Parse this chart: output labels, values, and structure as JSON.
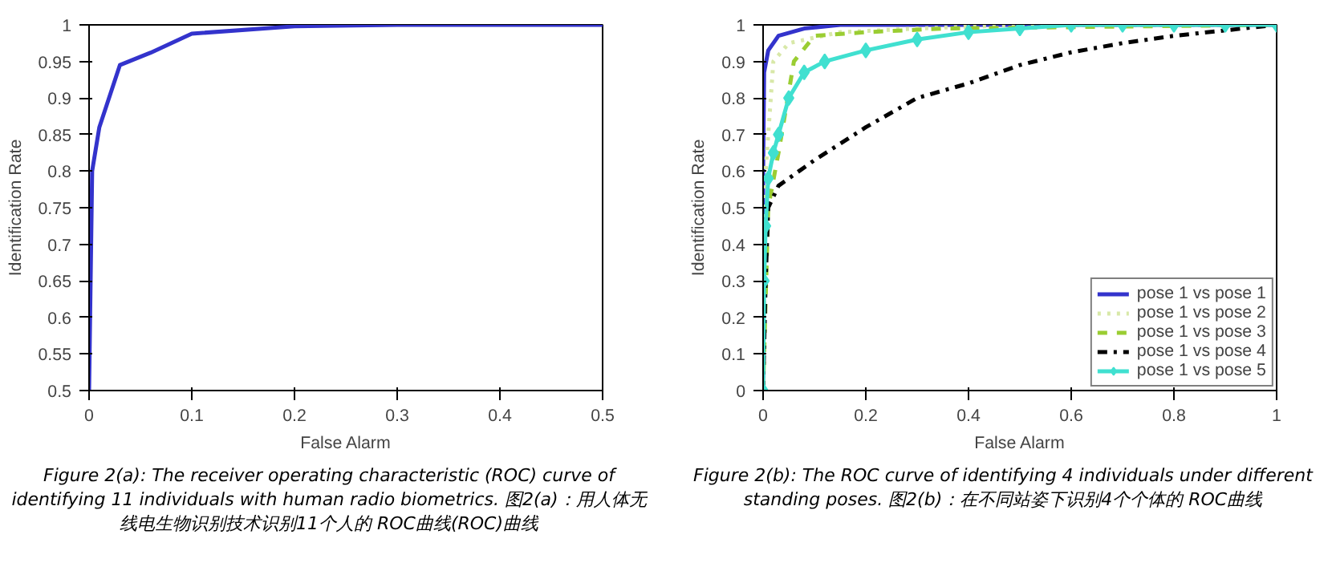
{
  "chart_data": [
    {
      "type": "line",
      "xlabel": "False Alarm",
      "ylabel": "Identification Rate",
      "xlim": [
        0,
        0.5
      ],
      "ylim": [
        0.5,
        1
      ],
      "xticks": [
        0,
        0.1,
        0.2,
        0.3,
        0.4,
        0.5
      ],
      "yticks": [
        0.5,
        0.55,
        0.6,
        0.65,
        0.7,
        0.75,
        0.8,
        0.85,
        0.9,
        0.95,
        1
      ],
      "grid": false,
      "legend": false,
      "annotations": [
        "Figure 2(a): The receiver operating characteristic (ROC) curve of identifying 11 individuals with human radio biometrics. 图2(a)：用人体无线电生物识别技术识别11个人的 ROC曲线(ROC)曲线"
      ],
      "series": [
        {
          "color": "#3333cc",
          "line_style": "solid",
          "x": [
            0,
            0.003,
            0.01,
            0.03,
            0.06,
            0.1,
            0.2,
            0.3,
            0.5
          ],
          "values": [
            0.5,
            0.8,
            0.86,
            0.945,
            0.962,
            0.988,
            0.998,
            1,
            1
          ]
        }
      ]
    },
    {
      "type": "line",
      "xlabel": "False Alarm",
      "ylabel": "Identification Rate",
      "xlim": [
        0,
        1
      ],
      "ylim": [
        0,
        1
      ],
      "xticks": [
        0,
        0.2,
        0.4,
        0.6,
        0.8,
        1
      ],
      "yticks": [
        0,
        0.1,
        0.2,
        0.3,
        0.4,
        0.5,
        0.6,
        0.7,
        0.8,
        0.9,
        1
      ],
      "grid": false,
      "legend": "bottom right",
      "annotations": [
        "Figure 2(b): The ROC curve of identifying 4 individuals under different standing poses. 图2(b)：在不同站姿下识别4个个体的 ROC曲线"
      ],
      "series": [
        {
          "name": "pose 1 vs pose 1",
          "color": "#3333cc",
          "line_style": "solid",
          "marker": "none",
          "x": [
            0,
            0,
            0.002,
            0.01,
            0.03,
            0.08,
            0.15,
            1
          ],
          "values": [
            0,
            0.6,
            0.87,
            0.93,
            0.97,
            0.99,
            1,
            1
          ]
        },
        {
          "name": "pose 1 vs pose 2",
          "color": "#d8e8a8",
          "line_style": "dotted",
          "marker": "none",
          "x": [
            0,
            0.005,
            0.02,
            0.05,
            0.15,
            0.3,
            0.5,
            1
          ],
          "values": [
            0,
            0.6,
            0.9,
            0.95,
            0.98,
            0.99,
            1,
            1
          ]
        },
        {
          "name": "pose 1 vs pose 3",
          "color": "#9acd32",
          "line_style": "dashed",
          "marker": "none",
          "x": [
            0,
            0.01,
            0.03,
            0.06,
            0.1,
            0.2,
            0.35,
            1
          ],
          "values": [
            0,
            0.5,
            0.65,
            0.9,
            0.97,
            0.98,
            0.99,
            1
          ]
        },
        {
          "name": "pose 1 vs pose 4",
          "color": "#000000",
          "line_style": "dashdot",
          "marker": "none",
          "x": [
            0,
            0.005,
            0.01,
            0.03,
            0.1,
            0.2,
            0.3,
            0.4,
            0.5,
            0.6,
            0.7,
            0.8,
            0.9,
            1
          ],
          "values": [
            0,
            0.3,
            0.5,
            0.56,
            0.63,
            0.72,
            0.8,
            0.84,
            0.89,
            0.925,
            0.95,
            0.97,
            0.985,
            1
          ]
        },
        {
          "name": "pose 1 vs pose 5",
          "color": "#40e0d0",
          "line_style": "solid",
          "marker": "diamond",
          "x": [
            0,
            0.002,
            0.005,
            0.01,
            0.02,
            0.03,
            0.05,
            0.08,
            0.12,
            0.2,
            0.3,
            0.4,
            0.5,
            0.6,
            0.7,
            0.8,
            0.9,
            1
          ],
          "values": [
            0,
            0.3,
            0.45,
            0.58,
            0.65,
            0.7,
            0.8,
            0.87,
            0.9,
            0.93,
            0.96,
            0.98,
            0.99,
            1,
            1,
            1,
            1,
            1
          ]
        }
      ]
    }
  ]
}
